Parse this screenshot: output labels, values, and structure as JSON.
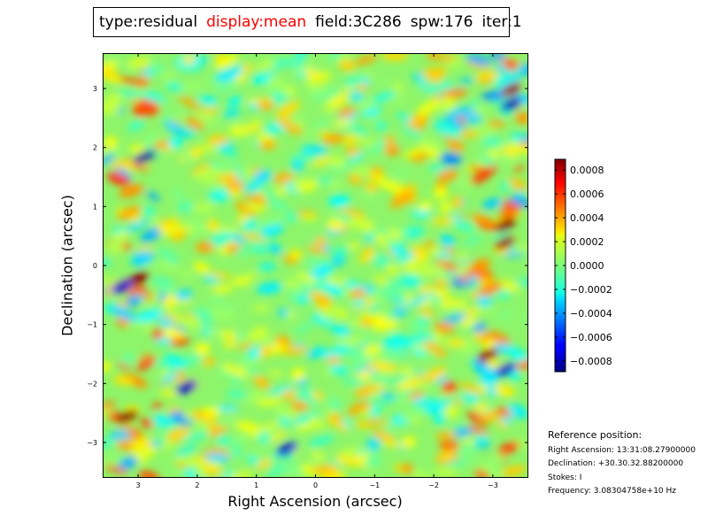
{
  "header": {
    "type_label": "type:residual",
    "display_label": "display:mean",
    "field_label": "field:3C286",
    "spw_label": "spw:176",
    "iter_label": "iter:1",
    "display_color": "#ff0000"
  },
  "chart_data": {
    "type": "heatmap",
    "colormap": "jet",
    "xlabel": "Right Ascension (arcsec)",
    "ylabel": "Declination (arcsec)",
    "xlim": [
      3.6,
      -3.6
    ],
    "ylim": [
      -3.6,
      3.6
    ],
    "xticks": [
      3,
      2,
      1,
      0,
      -1,
      -2,
      -3
    ],
    "xtick_labels": [
      "3",
      "2",
      "1",
      "0",
      "−1",
      "−2",
      "−3"
    ],
    "yticks": [
      3,
      2,
      1,
      0,
      -1,
      -2,
      -3
    ],
    "ytick_labels": [
      "3",
      "2",
      "1",
      "0",
      "−1",
      "−2",
      "−3"
    ],
    "colorbar": {
      "vmin": -0.00089,
      "vmax": 0.00089,
      "ticks": [
        0.0008,
        0.0006,
        0.0004,
        0.0002,
        0.0,
        -0.0002,
        -0.0004,
        -0.0006,
        -0.0008
      ],
      "tick_labels": [
        "0.0008",
        "0.0006",
        "0.0004",
        "0.0002",
        "0.0000",
        "−0.0002",
        "−0.0004",
        "−0.0006",
        "−0.0008"
      ]
    },
    "features": [
      {
        "ra": 3.0,
        "dec": -0.2,
        "value": 0.00085
      },
      {
        "ra": 3.3,
        "dec": -0.35,
        "value": -0.0006
      },
      {
        "ra": 3.2,
        "dec": -2.55,
        "value": 0.00085
      },
      {
        "ra": 2.9,
        "dec": 1.85,
        "value": -0.0008
      },
      {
        "ra": 2.2,
        "dec": -2.05,
        "value": -0.0007
      },
      {
        "ra": -3.2,
        "dec": 0.7,
        "value": 0.00085
      },
      {
        "ra": -3.2,
        "dec": 0.4,
        "value": 0.0008
      },
      {
        "ra": -3.3,
        "dec": 3.0,
        "value": 0.0008
      },
      {
        "ra": -3.3,
        "dec": 2.75,
        "value": -0.0007
      },
      {
        "ra": -2.9,
        "dec": -1.5,
        "value": 0.0008
      },
      {
        "ra": 0.5,
        "dec": -3.1,
        "value": -0.0006
      },
      {
        "ra": -3.2,
        "dec": -1.75,
        "value": -0.0006
      }
    ]
  },
  "reference": {
    "heading": "Reference position:",
    "ra": "Right Ascension: 13:31:08.27900000",
    "dec": "Declination: +30.30.32.88200000",
    "stokes": "Stokes: I",
    "freq": "Frequency: 3.08304758e+10 Hz"
  }
}
